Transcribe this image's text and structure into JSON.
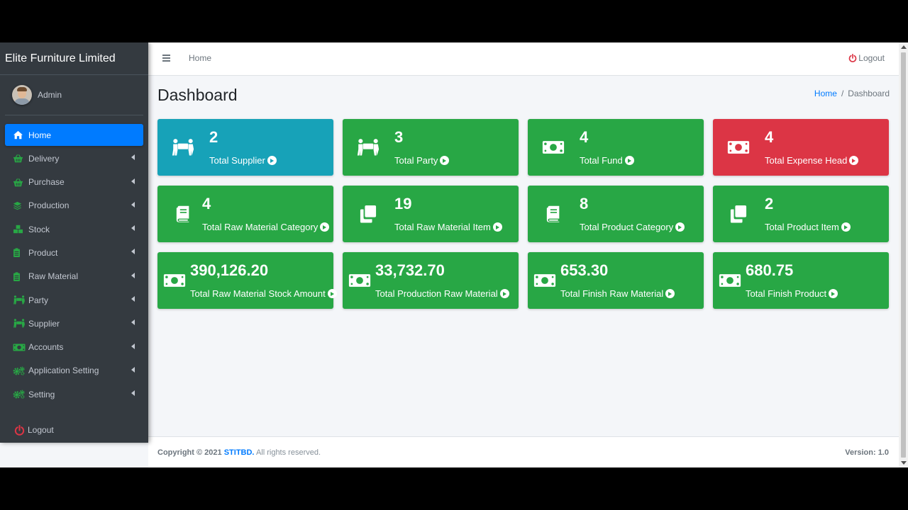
{
  "brand": {
    "title": "Elite Furniture Limited"
  },
  "user": {
    "name": "Admin"
  },
  "sidebar": {
    "items": [
      {
        "label": "Home",
        "icon": "home-icon",
        "active": true
      },
      {
        "label": "Delivery",
        "icon": "basket-icon"
      },
      {
        "label": "Purchase",
        "icon": "basket-icon"
      },
      {
        "label": "Production",
        "icon": "layers-icon"
      },
      {
        "label": "Stock",
        "icon": "cubes-icon"
      },
      {
        "label": "Product",
        "icon": "clipboard-icon"
      },
      {
        "label": "Raw Material",
        "icon": "clipboard-icon"
      },
      {
        "label": "Party",
        "icon": "people-carry-icon"
      },
      {
        "label": "Supplier",
        "icon": "people-carry-icon"
      },
      {
        "label": "Accounts",
        "icon": "money-icon"
      },
      {
        "label": "Application Setting",
        "icon": "cogs-icon"
      },
      {
        "label": "Setting",
        "icon": "cogs-icon"
      }
    ],
    "logout": "Logout"
  },
  "header": {
    "home_link": "Home",
    "logout": "Logout"
  },
  "page": {
    "title": "Dashboard",
    "breadcrumb": {
      "home": "Home",
      "separator": "/",
      "current": "Dashboard"
    }
  },
  "boxes": [
    {
      "value": "2",
      "label": "Total Supplier",
      "icon": "people-carry-icon",
      "color": "#17a2b8"
    },
    {
      "value": "3",
      "label": "Total Party",
      "icon": "people-carry-icon",
      "color": "#28a745"
    },
    {
      "value": "4",
      "label": "Total Fund",
      "icon": "money-icon",
      "color": "#28a745"
    },
    {
      "value": "4",
      "label": "Total Expense Head",
      "icon": "money-icon",
      "color": "#dc3545"
    },
    {
      "value": "4",
      "label": "Total Raw Material Category",
      "icon": "book-icon",
      "color": "#28a745"
    },
    {
      "value": "19",
      "label": "Total Raw Material Item",
      "icon": "clone-icon",
      "color": "#28a745"
    },
    {
      "value": "8",
      "label": "Total Product Category",
      "icon": "book-icon",
      "color": "#28a745"
    },
    {
      "value": "2",
      "label": "Total Product Item",
      "icon": "clone-icon",
      "color": "#28a745"
    },
    {
      "value": "390,126.20",
      "label": "Total Raw Material Stock Amount",
      "icon": "money-icon",
      "color": "#28a745"
    },
    {
      "value": "33,732.70",
      "label": "Total Production Raw Material",
      "icon": "money-icon",
      "color": "#28a745"
    },
    {
      "value": "653.30",
      "label": "Total Finish Raw Material",
      "icon": "money-icon",
      "color": "#28a745"
    },
    {
      "value": "680.75",
      "label": "Total Finish Product",
      "icon": "money-icon",
      "color": "#28a745"
    }
  ],
  "footer": {
    "copyright": "Copyright © 2021",
    "company": "STITBD.",
    "rights": "All rights reserved.",
    "version_label": "Version:",
    "version": "1.0"
  },
  "colors": {
    "sidebar_bg": "#343a40",
    "accent": "#007bff",
    "success": "#28a745",
    "info": "#17a2b8",
    "danger": "#dc3545",
    "icon_green": "#28a745"
  }
}
